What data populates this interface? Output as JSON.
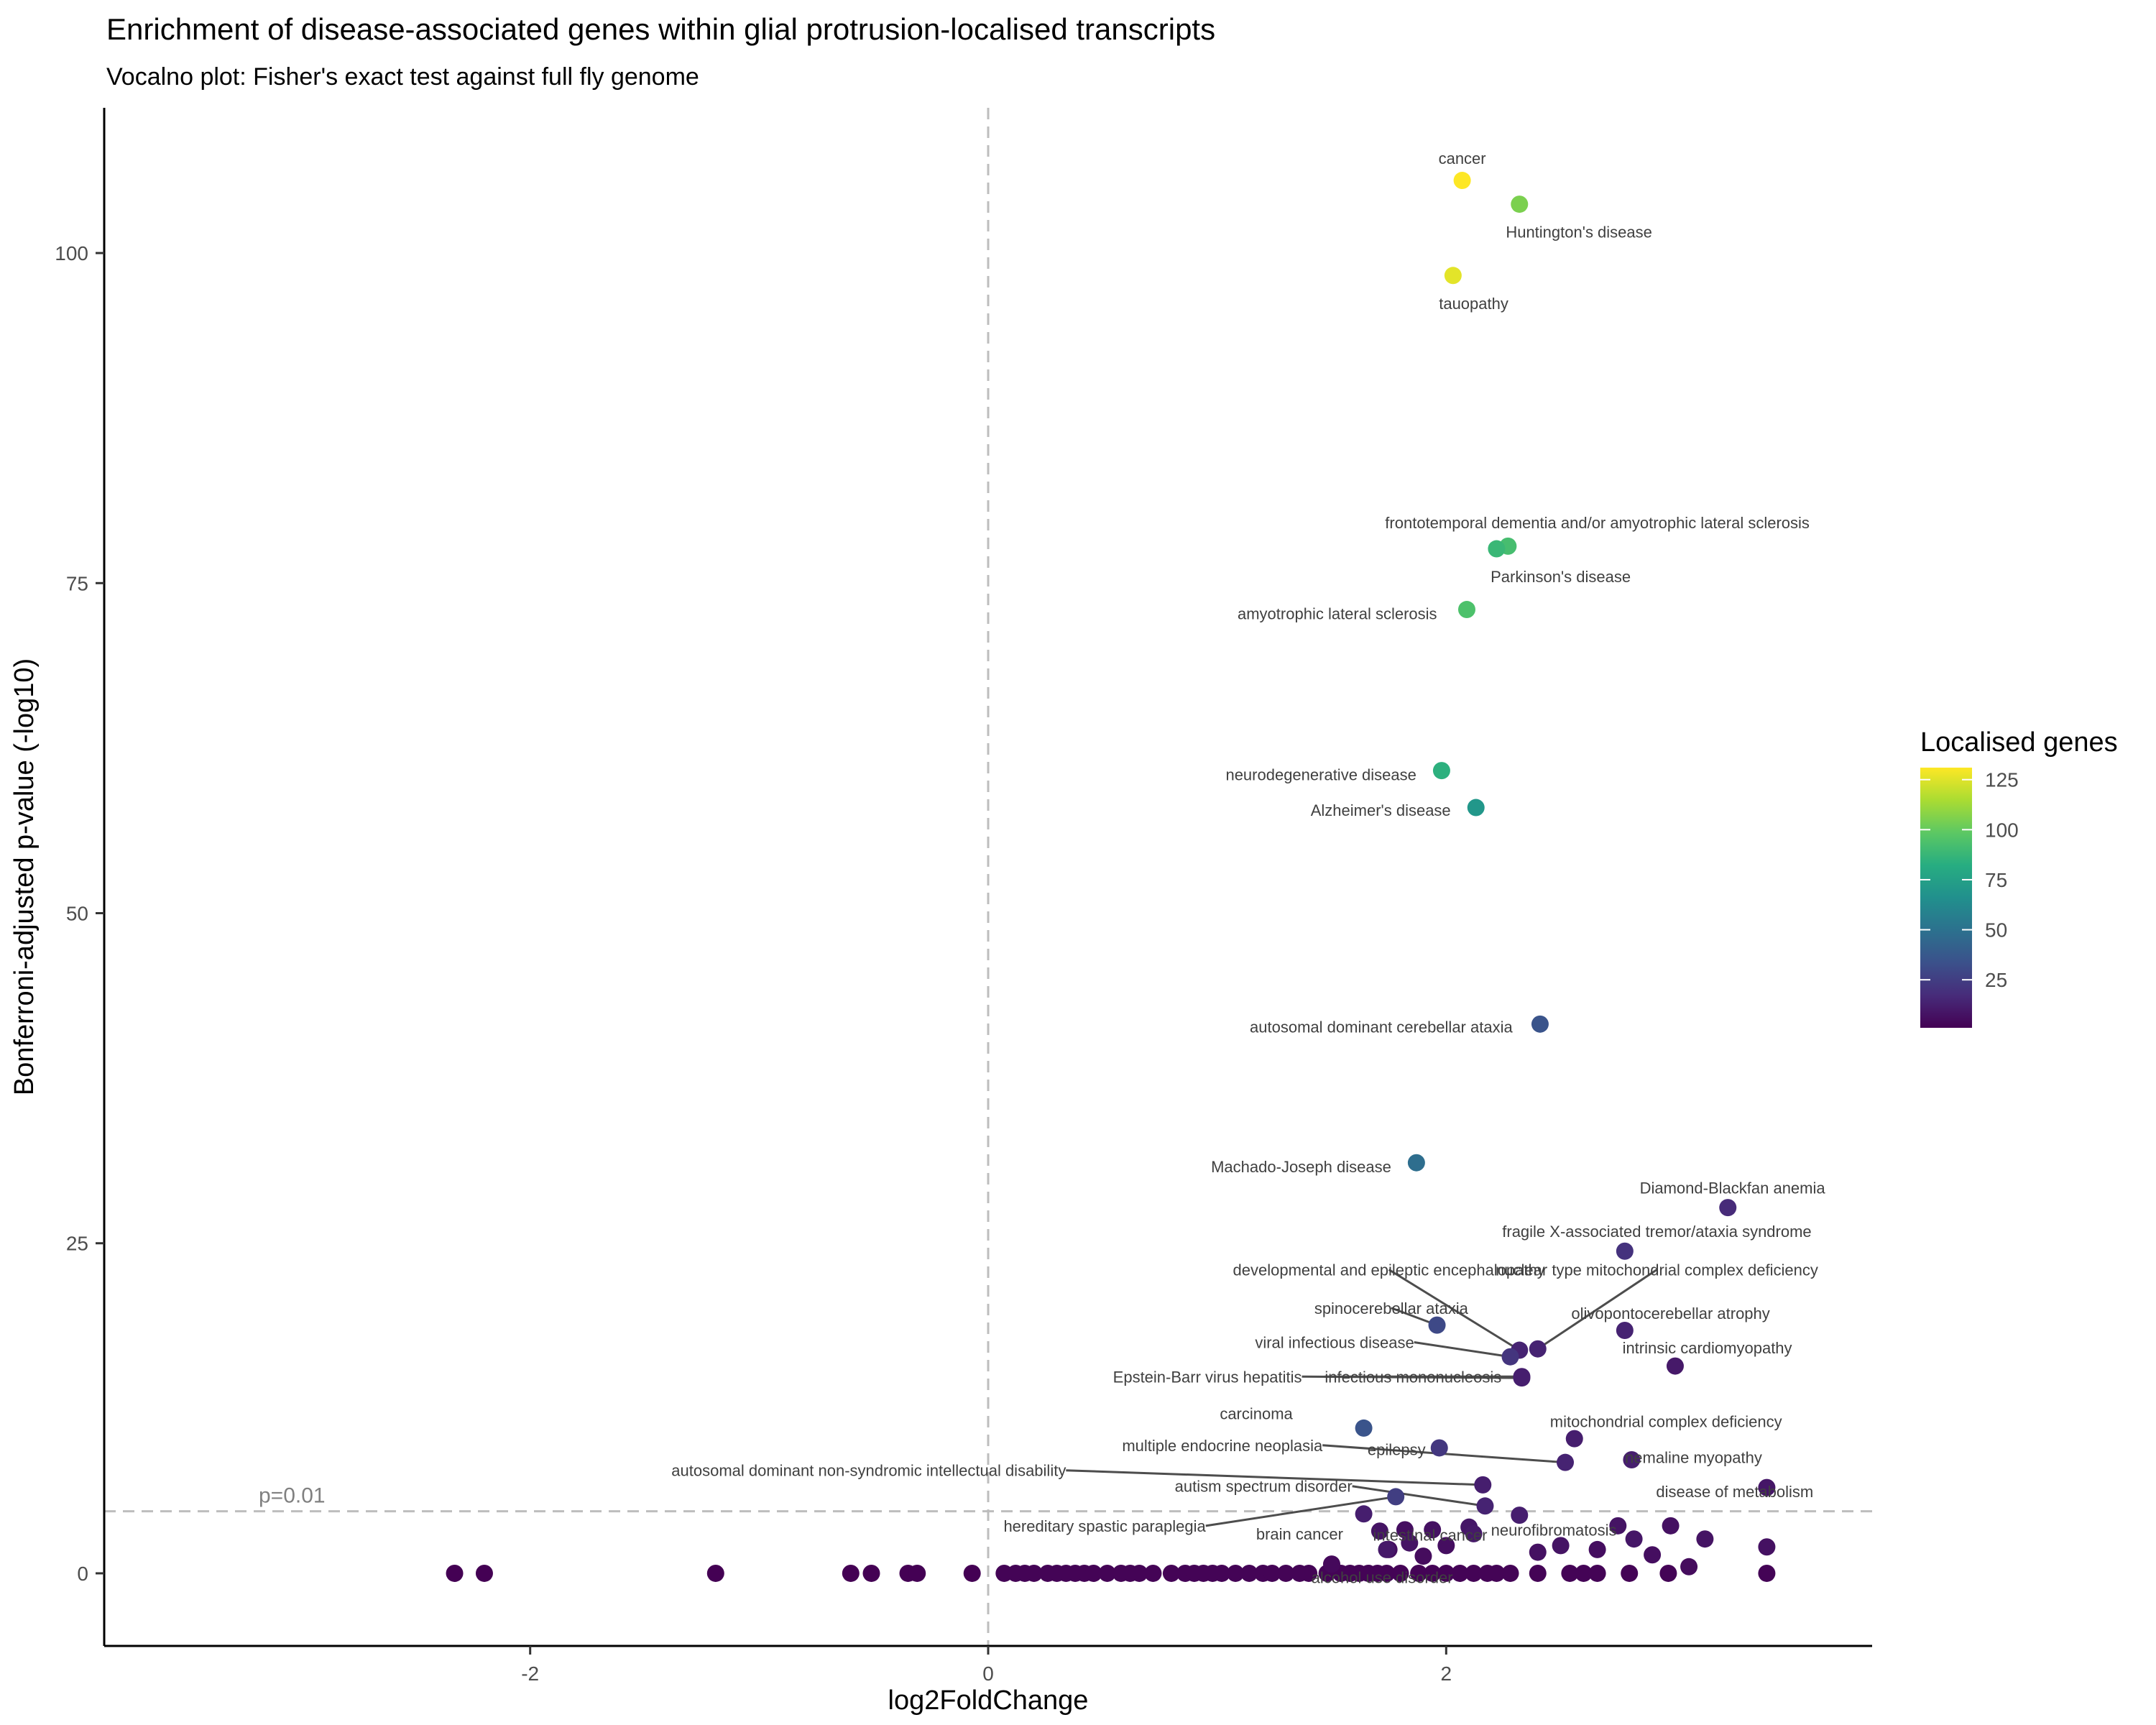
{
  "chart_data": {
    "type": "scatter",
    "title": "Enrichment of disease-associated genes within glial protrusion-localised transcripts",
    "subtitle": "Vocalno plot: Fisher's exact test against full fly genome",
    "xlabel": "log2FoldChange",
    "ylabel": "Bonferroni-adjusted p-value (-log10)",
    "xlim": [
      -3.86,
      3.86
    ],
    "ylim": [
      -5.5,
      111
    ],
    "x_ticks": [
      -2,
      0,
      2
    ],
    "y_ticks": [
      0,
      25,
      50,
      75,
      100
    ],
    "grid": false,
    "color_scale": {
      "title": "Localised genes",
      "palette": "viridis",
      "min": 1,
      "max": 131,
      "ticks": [
        25,
        50,
        75,
        100,
        125
      ],
      "legend_position": "right"
    },
    "vline": {
      "x": 0
    },
    "hline": {
      "y": 4.7,
      "label": "p=0.01"
    },
    "labeled_points": [
      {
        "label": "cancer",
        "x": 2.07,
        "y": 105.5,
        "count": 131,
        "lx": 2.07,
        "ly": 107.2,
        "anchor": "middle"
      },
      {
        "label": "Huntington's disease",
        "x": 2.32,
        "y": 103.7,
        "count": 105,
        "lx": 2.58,
        "ly": 101.6,
        "anchor": "middle"
      },
      {
        "label": "tauopathy",
        "x": 2.03,
        "y": 98.3,
        "count": 126,
        "lx": 2.12,
        "ly": 96.2,
        "anchor": "middle"
      },
      {
        "label": "frontotemporal dementia and/or amyotrophic lateral sclerosis",
        "x": 2.27,
        "y": 77.8,
        "count": 92,
        "lx": 2.66,
        "ly": 79.6,
        "anchor": "middle"
      },
      {
        "label": "Parkinson's disease",
        "x": 2.22,
        "y": 77.6,
        "count": 88,
        "lx": 2.5,
        "ly": 75.5,
        "anchor": "middle"
      },
      {
        "label": "amyotrophic lateral sclerosis",
        "x": 2.09,
        "y": 73.0,
        "count": 94,
        "lx": 1.96,
        "ly": 72.7,
        "anchor": "end"
      },
      {
        "label": "neurodegenerative disease",
        "x": 1.98,
        "y": 60.8,
        "count": 84,
        "lx": 1.87,
        "ly": 60.5,
        "anchor": "end"
      },
      {
        "label": "Alzheimer's disease",
        "x": 2.13,
        "y": 58.0,
        "count": 70,
        "lx": 2.02,
        "ly": 57.8,
        "anchor": "end"
      },
      {
        "label": "autosomal dominant cerebellar ataxia",
        "x": 2.41,
        "y": 41.6,
        "count": 35,
        "lx": 2.29,
        "ly": 41.4,
        "anchor": "end"
      },
      {
        "label": "Machado-Joseph disease",
        "x": 1.87,
        "y": 31.1,
        "count": 48,
        "lx": 1.76,
        "ly": 30.8,
        "anchor": "end"
      },
      {
        "label": "Diamond-Blackfan anemia",
        "x": 3.23,
        "y": 27.7,
        "count": 17,
        "lx": 3.25,
        "ly": 29.2,
        "anchor": "middle"
      },
      {
        "label": "fragile X-associated tremor/ataxia syndrome",
        "x": 2.78,
        "y": 24.4,
        "count": 20,
        "lx": 2.92,
        "ly": 25.9,
        "anchor": "middle"
      },
      {
        "label": "developmental and epileptic encephalopathy",
        "x": 2.32,
        "y": 16.9,
        "count": 14,
        "lx": 1.75,
        "ly": 23.0,
        "anchor": "middle",
        "leader": true
      },
      {
        "label": "nuclear type mitochondrial complex deficiency",
        "x": 2.4,
        "y": 17.0,
        "count": 14,
        "lx": 2.92,
        "ly": 23.0,
        "anchor": "middle",
        "leader": true
      },
      {
        "label": "spinocerebellar ataxia",
        "x": 1.96,
        "y": 18.8,
        "count": 30,
        "lx": 1.76,
        "ly": 20.1,
        "anchor": "middle",
        "leader": true
      },
      {
        "label": "olivopontocerebellar atrophy",
        "x": 2.78,
        "y": 18.4,
        "count": 14,
        "lx": 2.98,
        "ly": 19.7,
        "anchor": "middle"
      },
      {
        "label": "intrinsic cardiomyopathy",
        "x": 3.0,
        "y": 15.7,
        "count": 10,
        "lx": 3.14,
        "ly": 17.1,
        "anchor": "middle"
      },
      {
        "label": "viral infectious disease",
        "x": 2.28,
        "y": 16.4,
        "count": 21,
        "lx": 1.86,
        "ly": 17.5,
        "anchor": "end",
        "leader": true
      },
      {
        "label": "Epstein-Barr virus hepatitis",
        "x": 2.33,
        "y": 14.8,
        "count": 12,
        "lx": 1.37,
        "ly": 14.9,
        "anchor": "end",
        "leader": true
      },
      {
        "label": "infectious mononucleosis",
        "x": 2.33,
        "y": 14.9,
        "count": 12,
        "lx": 1.47,
        "ly": 14.9,
        "anchor": "start",
        "leader": true
      },
      {
        "label": "carcinoma",
        "x": 1.64,
        "y": 11.0,
        "count": 35,
        "lx": 1.33,
        "ly": 12.1,
        "anchor": "end"
      },
      {
        "label": "mitochondrial complex deficiency",
        "x": 2.56,
        "y": 10.2,
        "count": 12,
        "lx": 2.96,
        "ly": 11.5,
        "anchor": "middle"
      },
      {
        "label": "multiple endocrine neoplasia",
        "x": 2.52,
        "y": 8.4,
        "count": 14,
        "lx": 1.46,
        "ly": 9.7,
        "anchor": "end",
        "leader": true
      },
      {
        "label": "epilepsy",
        "x": 1.97,
        "y": 9.5,
        "count": 22,
        "lx": 1.91,
        "ly": 9.4,
        "anchor": "end"
      },
      {
        "label": "nemaline myopathy",
        "x": 2.81,
        "y": 8.6,
        "count": 12,
        "lx": 3.08,
        "ly": 8.8,
        "anchor": "middle"
      },
      {
        "label": "autosomal dominant non-syndromic intellectual disability",
        "x": 2.16,
        "y": 6.7,
        "count": 12,
        "lx": 0.34,
        "ly": 7.8,
        "anchor": "end",
        "leader": true
      },
      {
        "label": "autism spectrum disorder",
        "x": 2.17,
        "y": 5.1,
        "count": 14,
        "lx": 1.59,
        "ly": 6.6,
        "anchor": "end",
        "leader": true
      },
      {
        "label": "disease of metabolism",
        "x": 3.4,
        "y": 6.5,
        "count": 9,
        "lx": 3.26,
        "ly": 6.2,
        "anchor": "middle"
      },
      {
        "label": "hereditary spastic paraplegia",
        "x": 1.78,
        "y": 5.8,
        "count": 25,
        "lx": 0.95,
        "ly": 3.6,
        "anchor": "end",
        "leader": true
      },
      {
        "label": "brain cancer",
        "x": 1.64,
        "y": 4.5,
        "count": 12,
        "lx": 1.36,
        "ly": 3.0,
        "anchor": "middle"
      },
      {
        "label": "intestinal cancer",
        "x": 2.12,
        "y": 3.0,
        "count": 10,
        "lx": 1.93,
        "ly": 2.9,
        "anchor": "middle"
      },
      {
        "label": "neurofibromatosis",
        "x": 2.32,
        "y": 4.4,
        "count": 12,
        "lx": 2.47,
        "ly": 3.3,
        "anchor": "middle"
      },
      {
        "label": "alcohol use disorder",
        "x": 1.74,
        "y": 1.8,
        "count": 10,
        "lx": 1.72,
        "ly": -0.3,
        "anchor": "middle"
      }
    ],
    "other_points": [
      {
        "x": -2.33,
        "y": 0,
        "count": 1
      },
      {
        "x": -2.2,
        "y": 0,
        "count": 1
      },
      {
        "x": -1.19,
        "y": 0,
        "count": 1
      },
      {
        "x": -0.6,
        "y": 0,
        "count": 1
      },
      {
        "x": -0.51,
        "y": 0,
        "count": 1
      },
      {
        "x": -0.35,
        "y": 0,
        "count": 1
      },
      {
        "x": -0.31,
        "y": 0,
        "count": 1
      },
      {
        "x": -0.07,
        "y": 0,
        "count": 1
      },
      {
        "x": 0.07,
        "y": 0,
        "count": 2
      },
      {
        "x": 0.12,
        "y": 0,
        "count": 2
      },
      {
        "x": 0.16,
        "y": 0,
        "count": 2
      },
      {
        "x": 0.2,
        "y": 0,
        "count": 2
      },
      {
        "x": 0.26,
        "y": 0,
        "count": 2
      },
      {
        "x": 0.3,
        "y": 0,
        "count": 2
      },
      {
        "x": 0.34,
        "y": 0,
        "count": 2
      },
      {
        "x": 0.38,
        "y": 0,
        "count": 2
      },
      {
        "x": 0.42,
        "y": 0,
        "count": 2
      },
      {
        "x": 0.46,
        "y": 0,
        "count": 2
      },
      {
        "x": 0.52,
        "y": 0,
        "count": 2
      },
      {
        "x": 0.58,
        "y": 0,
        "count": 2
      },
      {
        "x": 0.62,
        "y": 0,
        "count": 2
      },
      {
        "x": 0.66,
        "y": 0,
        "count": 2
      },
      {
        "x": 0.72,
        "y": 0,
        "count": 2
      },
      {
        "x": 0.8,
        "y": 0,
        "count": 2
      },
      {
        "x": 0.86,
        "y": 0,
        "count": 2
      },
      {
        "x": 0.9,
        "y": 0,
        "count": 2
      },
      {
        "x": 0.94,
        "y": 0,
        "count": 2
      },
      {
        "x": 0.98,
        "y": 0,
        "count": 2
      },
      {
        "x": 1.02,
        "y": 0,
        "count": 2
      },
      {
        "x": 1.08,
        "y": 0,
        "count": 2
      },
      {
        "x": 1.14,
        "y": 0,
        "count": 2
      },
      {
        "x": 1.2,
        "y": 0,
        "count": 2
      },
      {
        "x": 1.24,
        "y": 0,
        "count": 2
      },
      {
        "x": 1.3,
        "y": 0,
        "count": 2
      },
      {
        "x": 1.36,
        "y": 0,
        "count": 2
      },
      {
        "x": 1.4,
        "y": 0,
        "count": 2
      },
      {
        "x": 1.48,
        "y": 0,
        "count": 2
      },
      {
        "x": 1.54,
        "y": 0,
        "count": 2
      },
      {
        "x": 1.58,
        "y": 0,
        "count": 2
      },
      {
        "x": 1.62,
        "y": 0,
        "count": 2
      },
      {
        "x": 1.66,
        "y": 0,
        "count": 2
      },
      {
        "x": 1.7,
        "y": 0,
        "count": 2
      },
      {
        "x": 1.74,
        "y": 0,
        "count": 2
      },
      {
        "x": 1.8,
        "y": 0,
        "count": 2
      },
      {
        "x": 1.88,
        "y": 0,
        "count": 2
      },
      {
        "x": 1.94,
        "y": 0,
        "count": 2
      },
      {
        "x": 2.0,
        "y": 0,
        "count": 2
      },
      {
        "x": 2.06,
        "y": 0,
        "count": 2
      },
      {
        "x": 2.12,
        "y": 0,
        "count": 2
      },
      {
        "x": 2.18,
        "y": 0,
        "count": 2
      },
      {
        "x": 2.22,
        "y": 0,
        "count": 2
      },
      {
        "x": 2.28,
        "y": 0,
        "count": 2
      },
      {
        "x": 2.4,
        "y": 0,
        "count": 2
      },
      {
        "x": 2.54,
        "y": 0,
        "count": 2
      },
      {
        "x": 2.6,
        "y": 0,
        "count": 2
      },
      {
        "x": 2.66,
        "y": 0,
        "count": 2
      },
      {
        "x": 2.8,
        "y": 0,
        "count": 2
      },
      {
        "x": 2.97,
        "y": 0,
        "count": 2
      },
      {
        "x": 3.4,
        "y": 0,
        "count": 2
      },
      {
        "x": 1.5,
        "y": 0.7,
        "count": 4
      },
      {
        "x": 1.71,
        "y": 3.2,
        "count": 8
      },
      {
        "x": 1.75,
        "y": 1.8,
        "count": 6
      },
      {
        "x": 1.82,
        "y": 3.3,
        "count": 6
      },
      {
        "x": 1.84,
        "y": 2.3,
        "count": 8
      },
      {
        "x": 1.9,
        "y": 1.3,
        "count": 5
      },
      {
        "x": 1.94,
        "y": 3.3,
        "count": 7
      },
      {
        "x": 2.0,
        "y": 2.1,
        "count": 6
      },
      {
        "x": 2.1,
        "y": 3.5,
        "count": 9
      },
      {
        "x": 2.4,
        "y": 1.6,
        "count": 7
      },
      {
        "x": 2.5,
        "y": 2.1,
        "count": 8
      },
      {
        "x": 2.66,
        "y": 1.8,
        "count": 6
      },
      {
        "x": 2.75,
        "y": 3.6,
        "count": 8
      },
      {
        "x": 2.82,
        "y": 2.6,
        "count": 9
      },
      {
        "x": 2.9,
        "y": 1.4,
        "count": 6
      },
      {
        "x": 2.98,
        "y": 3.6,
        "count": 7
      },
      {
        "x": 3.06,
        "y": 0.5,
        "count": 5
      },
      {
        "x": 3.13,
        "y": 2.6,
        "count": 8
      },
      {
        "x": 3.4,
        "y": 2.0,
        "count": 7
      }
    ]
  }
}
